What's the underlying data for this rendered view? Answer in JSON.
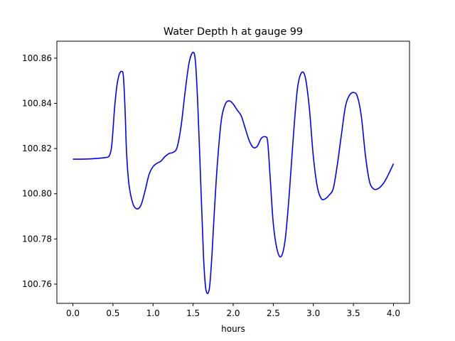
{
  "chart_data": {
    "type": "line",
    "title": "Water Depth h at gauge 99",
    "xlabel": "hours",
    "ylabel": "",
    "xlim": [
      -0.2,
      4.2
    ],
    "ylim": [
      100.7515,
      100.8675
    ],
    "xticks": [
      0.0,
      0.5,
      1.0,
      1.5,
      2.0,
      2.5,
      3.0,
      3.5,
      4.0
    ],
    "xtick_labels": [
      "0.0",
      "0.5",
      "1.0",
      "1.5",
      "2.0",
      "2.5",
      "3.0",
      "3.5",
      "4.0"
    ],
    "yticks": [
      100.76,
      100.78,
      100.8,
      100.82,
      100.84,
      100.86
    ],
    "ytick_labels": [
      "100.76",
      "100.78",
      "100.80",
      "100.82",
      "100.84",
      "100.86"
    ],
    "grid": false,
    "series": [
      {
        "color": "#0000ff",
        "x": [
          0.0,
          0.1,
          0.2,
          0.3,
          0.35,
          0.4,
          0.45,
          0.48,
          0.5,
          0.52,
          0.55,
          0.58,
          0.61,
          0.63,
          0.65,
          0.67,
          0.7,
          0.75,
          0.8,
          0.85,
          0.9,
          0.95,
          1.0,
          1.05,
          1.1,
          1.15,
          1.2,
          1.25,
          1.3,
          1.35,
          1.4,
          1.45,
          1.5,
          1.53,
          1.56,
          1.6,
          1.63,
          1.66,
          1.7,
          1.73,
          1.76,
          1.8,
          1.85,
          1.9,
          1.95,
          2.0,
          2.05,
          2.1,
          2.15,
          2.2,
          2.25,
          2.3,
          2.35,
          2.4,
          2.43,
          2.46,
          2.5,
          2.55,
          2.6,
          2.65,
          2.7,
          2.75,
          2.8,
          2.85,
          2.9,
          2.95,
          3.0,
          3.05,
          3.1,
          3.15,
          3.2,
          3.25,
          3.3,
          3.35,
          3.4,
          3.45,
          3.5,
          3.55,
          3.6,
          3.65,
          3.7,
          3.75,
          3.8,
          3.85,
          3.9,
          3.95,
          4.0
        ],
        "y": [
          100.8153,
          100.8153,
          100.8154,
          100.8156,
          100.8158,
          100.816,
          100.8166,
          100.82,
          100.828,
          100.838,
          100.848,
          100.853,
          100.8541,
          100.852,
          100.838,
          100.818,
          100.804,
          100.7955,
          100.7933,
          100.795,
          100.8012,
          100.8085,
          100.812,
          100.8135,
          100.8145,
          100.8165,
          100.8178,
          100.8183,
          100.8205,
          100.83,
          100.845,
          100.858,
          100.8626,
          100.858,
          100.838,
          100.8,
          100.772,
          100.7575,
          100.7575,
          100.77,
          100.789,
          100.812,
          100.832,
          100.8395,
          100.8411,
          100.8397,
          100.837,
          100.8345,
          100.829,
          100.8235,
          100.8205,
          100.821,
          100.8245,
          100.8252,
          100.823,
          100.808,
          100.787,
          100.775,
          100.7723,
          100.78,
          100.8,
          100.825,
          100.846,
          100.8534,
          100.8515,
          100.838,
          100.8165,
          100.803,
          100.7978,
          100.7978,
          100.7995,
          100.8025,
          100.813,
          100.826,
          100.8385,
          100.8435,
          100.8448,
          100.843,
          100.834,
          100.817,
          100.8055,
          100.8022,
          100.8021,
          100.8035,
          100.806,
          100.8095,
          100.8133
        ]
      }
    ]
  }
}
